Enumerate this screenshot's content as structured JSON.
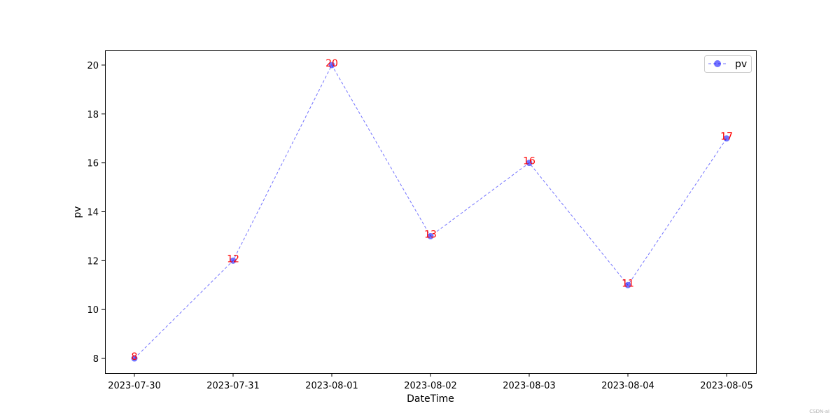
{
  "chart_data": {
    "type": "line",
    "x": [
      "2023-07-30",
      "2023-07-31",
      "2023-08-01",
      "2023-08-02",
      "2023-08-03",
      "2023-08-04",
      "2023-08-05"
    ],
    "series": [
      {
        "name": "pv",
        "values": [
          8,
          12,
          20,
          13,
          16,
          11,
          17
        ]
      }
    ],
    "data_labels": [
      "8",
      "12",
      "20",
      "13",
      "16",
      "11",
      "17"
    ],
    "xlabel": "DateTime",
    "ylabel": "pv",
    "yticks": [
      8,
      10,
      12,
      14,
      16,
      18,
      20
    ],
    "ylim": [
      7.4,
      20.6
    ],
    "grid": false,
    "legend_position": "top-right",
    "line_style": "dashed",
    "marker": "circle",
    "colors": {
      "series": "#0000ff",
      "data_labels": "#ff0000",
      "axes": "#000000"
    }
  },
  "watermark": "CSDN-ai"
}
